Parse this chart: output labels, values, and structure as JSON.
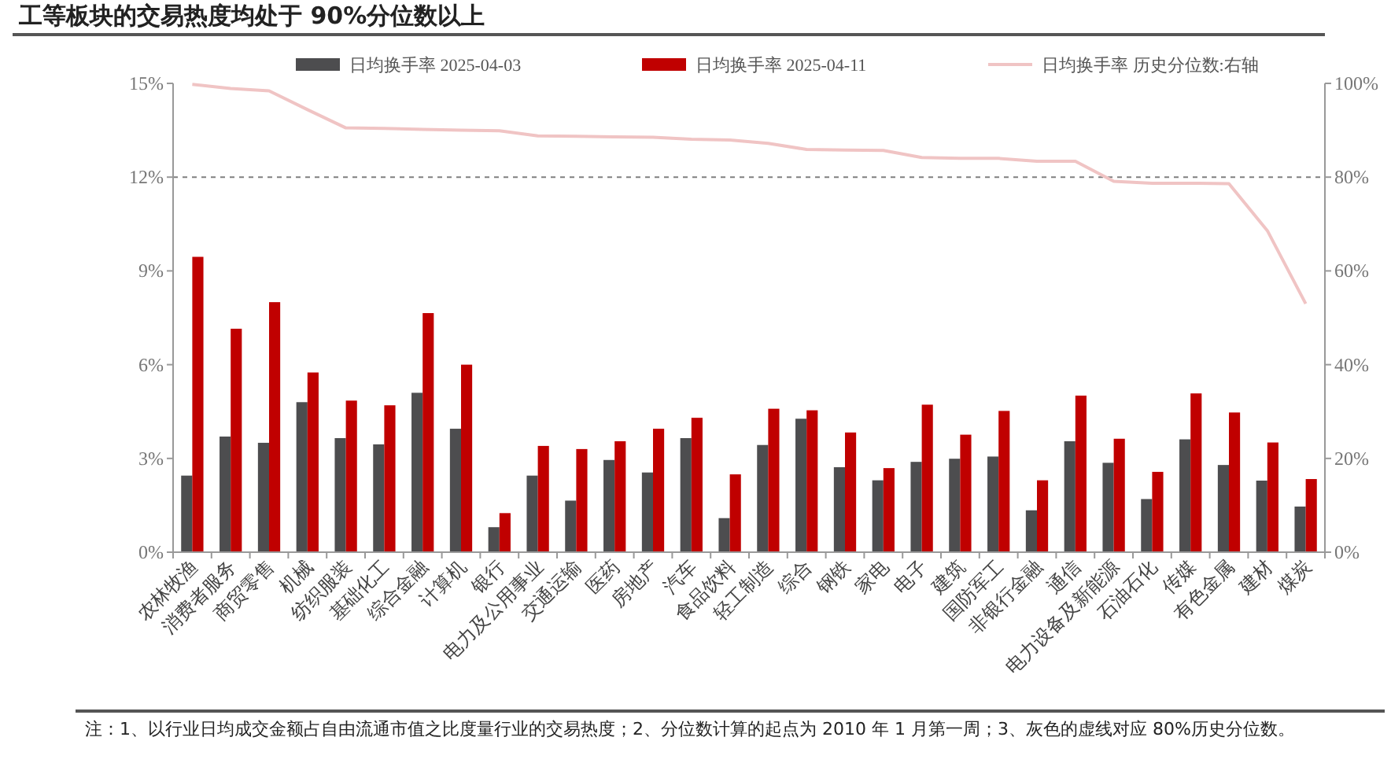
{
  "chart_data": {
    "type": "bar",
    "title": "工等板块的交易热度均处于 90%分位数以上",
    "categories": [
      "农林牧渔",
      "消费者服务",
      "商贸零售",
      "机械",
      "纺织服装",
      "基础化工",
      "综合金融",
      "计算机",
      "银行",
      "电力及公用事业",
      "交通运输",
      "医药",
      "房地产",
      "汽车",
      "食品饮料",
      "轻工制造",
      "综合",
      "钢铁",
      "家电",
      "电子",
      "建筑",
      "国防军工",
      "非银行金融",
      "通信",
      "电力设备及新能源",
      "石油石化",
      "传媒",
      "有色金属",
      "建材",
      "煤炭"
    ],
    "series": [
      {
        "name": "日均换手率 2025-04-03",
        "color": "#4d4d4f",
        "values": [
          2.45,
          3.7,
          3.5,
          4.8,
          3.65,
          3.45,
          5.1,
          3.95,
          0.8,
          2.45,
          1.65,
          2.95,
          2.55,
          3.65,
          1.09,
          3.43,
          4.27,
          2.72,
          2.3,
          2.89,
          2.99,
          3.06,
          1.34,
          3.55,
          2.86,
          1.7,
          3.61,
          2.79,
          2.29,
          1.46
        ]
      },
      {
        "name": "日均换手率 2025-04-11",
        "color": "#c00000",
        "values": [
          9.45,
          7.15,
          8.0,
          5.75,
          4.85,
          4.7,
          7.65,
          6.0,
          1.25,
          3.4,
          3.3,
          3.55,
          3.95,
          4.3,
          2.49,
          4.59,
          4.54,
          3.83,
          2.69,
          4.72,
          3.76,
          4.52,
          2.3,
          5.01,
          3.63,
          2.57,
          5.08,
          4.47,
          3.51,
          2.34
        ]
      },
      {
        "name": "日均换手率 历史分位数:右轴",
        "type": "line",
        "axis": "y2",
        "color": "#f0c4c4",
        "values": [
          99.8,
          98.9,
          98.4,
          94.4,
          90.5,
          90.4,
          90.2,
          90.0,
          89.9,
          88.8,
          88.7,
          88.6,
          88.5,
          88.1,
          87.9,
          87.2,
          85.9,
          85.8,
          85.7,
          84.2,
          84.0,
          84.0,
          83.4,
          83.4,
          79.1,
          78.7,
          78.7,
          78.6,
          68.6,
          53.0
        ]
      }
    ],
    "ylim": [
      0,
      15
    ],
    "yticks": [
      {
        "value": 0,
        "label": "0%"
      },
      {
        "value": 3,
        "label": "3%"
      },
      {
        "value": 6,
        "label": "6%"
      },
      {
        "value": 9,
        "label": "9%"
      },
      {
        "value": 12,
        "label": "12%"
      },
      {
        "value": 15,
        "label": "15%"
      }
    ],
    "y2lim": [
      0,
      100
    ],
    "y2ticks": [
      {
        "value": 0,
        "label": "0%"
      },
      {
        "value": 20,
        "label": "20%"
      },
      {
        "value": 40,
        "label": "40%"
      },
      {
        "value": 60,
        "label": "60%"
      },
      {
        "value": 80,
        "label": "80%"
      },
      {
        "value": 100,
        "label": "100%"
      }
    ],
    "ref_lines": [
      {
        "axis": "y",
        "value": 12,
        "color": "#808080",
        "line_style": "dashed"
      }
    ],
    "legend": "top",
    "annotations": [
      "注：1、以行业日均成交金额占自由流通市值之比度量行业的交易热度；2、分位数计算的起点为 2010 年 1 月第一周；3、灰色的虚线对应 80%历史分位数。"
    ]
  }
}
